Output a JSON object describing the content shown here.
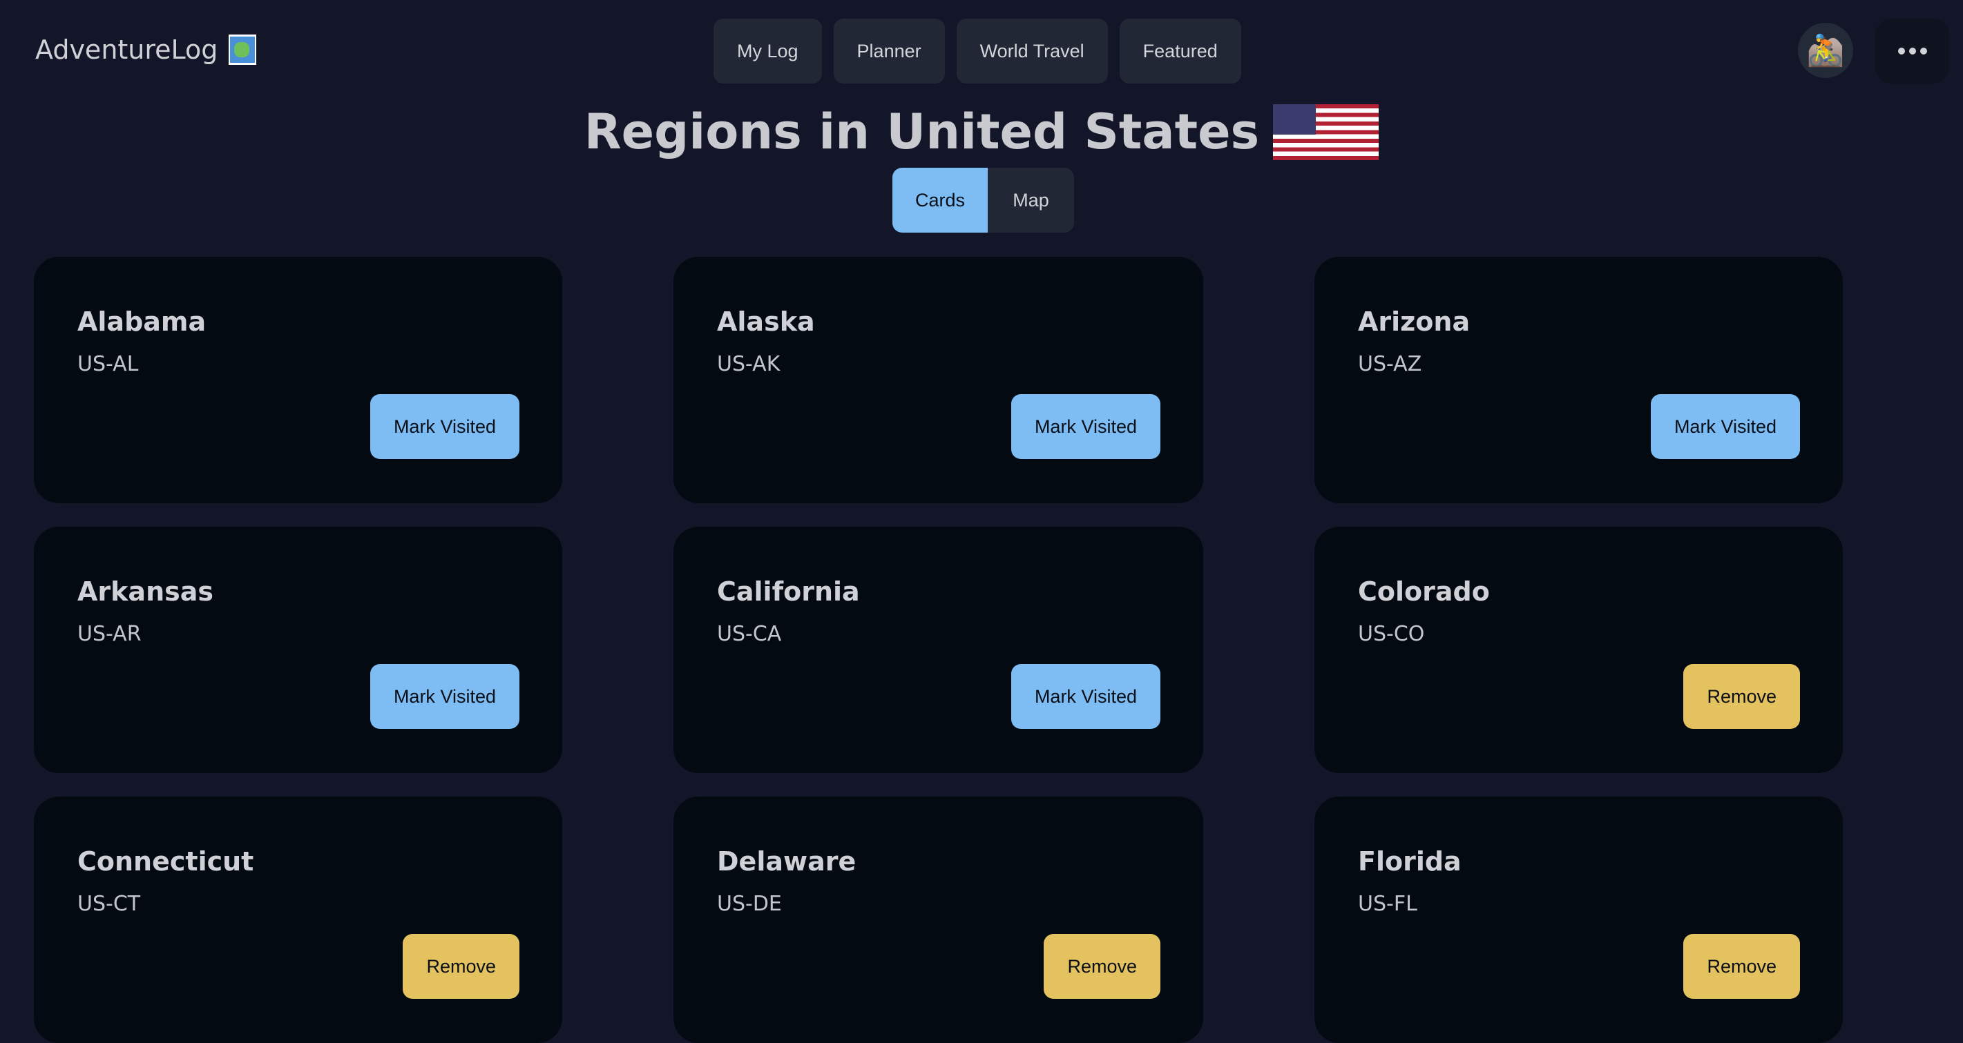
{
  "app": {
    "name": "AdventureLog",
    "logo_icon": "world-map-icon"
  },
  "nav": {
    "items": [
      {
        "label": "My Log"
      },
      {
        "label": "Planner"
      },
      {
        "label": "World Travel"
      },
      {
        "label": "Featured"
      }
    ]
  },
  "user": {
    "avatar_icon": "mountain-biker-icon",
    "menu_icon": "more-horizontal-icon"
  },
  "header": {
    "title": "Regions in United States",
    "flag_icon": "us-flag-icon"
  },
  "view_toggle": {
    "cards_label": "Cards",
    "map_label": "Map",
    "selected": "Cards"
  },
  "colors": {
    "accent": "#7dbdf4",
    "remove": "#e5c260",
    "background": "#131629",
    "card": "#040a12"
  },
  "regions": [
    {
      "name": "Alabama",
      "code": "US-AL",
      "visited": false,
      "action": "Mark Visited"
    },
    {
      "name": "Alaska",
      "code": "US-AK",
      "visited": false,
      "action": "Mark Visited"
    },
    {
      "name": "Arizona",
      "code": "US-AZ",
      "visited": false,
      "action": "Mark Visited"
    },
    {
      "name": "Arkansas",
      "code": "US-AR",
      "visited": false,
      "action": "Mark Visited"
    },
    {
      "name": "California",
      "code": "US-CA",
      "visited": false,
      "action": "Mark Visited"
    },
    {
      "name": "Colorado",
      "code": "US-CO",
      "visited": true,
      "action": "Remove"
    },
    {
      "name": "Connecticut",
      "code": "US-CT",
      "visited": true,
      "action": "Remove"
    },
    {
      "name": "Delaware",
      "code": "US-DE",
      "visited": true,
      "action": "Remove"
    },
    {
      "name": "Florida",
      "code": "US-FL",
      "visited": true,
      "action": "Remove"
    }
  ]
}
